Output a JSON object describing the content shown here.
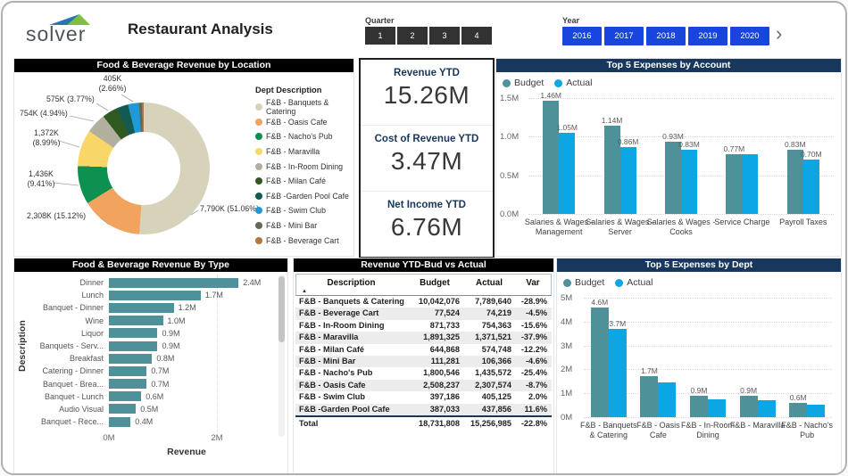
{
  "header": {
    "logo_text": "solver",
    "title": "Restaurant Analysis",
    "quarter_label": "Quarter",
    "quarters": [
      "1",
      "2",
      "3",
      "4"
    ],
    "year_label": "Year",
    "years": [
      "2016",
      "2017",
      "2018",
      "2019",
      "2020"
    ],
    "next_icon": "›"
  },
  "colors": {
    "budget_teal": "#4E9199",
    "actual_blue": "#0BA6E3",
    "header_navy": "#17375C",
    "header_black": "#000000",
    "year_button_blue": "#1745DD",
    "quarter_button_dark": "#323232",
    "kpi_label_navy": "#17375C",
    "logo_blue": "#2A73B5",
    "logo_green": "#7FBE41"
  },
  "kpi_cards": {
    "items": [
      {
        "label": "Revenue YTD",
        "value": "15.26M"
      },
      {
        "label": "Cost of Revenue YTD",
        "value": "3.47M"
      },
      {
        "label": "Net Income YTD",
        "value": "6.76M"
      }
    ]
  },
  "chart_data": [
    {
      "id": "revenue_by_location",
      "type": "pie",
      "title": "Food & Beverage Revenue by Location",
      "legend_title": "Dept Description",
      "legend_position": "right",
      "slices": [
        {
          "label": "F&B - Banquets & Catering",
          "value_k": 7790,
          "pct": 51.06,
          "color": "#D7D3BA",
          "callout": [
            "7,790K (51.06%)"
          ]
        },
        {
          "label": "F&B - Oasis Cafe",
          "value_k": 2308,
          "pct": 15.12,
          "color": "#F2A35E",
          "callout": [
            "2,308K (15.12%)"
          ]
        },
        {
          "label": "F&B - Nacho's Pub",
          "value_k": 1436,
          "pct": 9.41,
          "color": "#0E9150",
          "callout": [
            "1,436K",
            "(9.41%)"
          ]
        },
        {
          "label": "F&B - Maravilla",
          "value_k": 1372,
          "pct": 8.99,
          "color": "#F8D668",
          "callout": [
            "1,372K",
            "(8.99%)"
          ]
        },
        {
          "label": "F&B - In-Room Dining",
          "value_k": 754,
          "pct": 4.94,
          "color": "#B2AF9E",
          "callout": [
            "754K (4.94%)"
          ]
        },
        {
          "label": "F&B - Milan Café",
          "value_k": 575,
          "pct": 3.77,
          "color": "#30591F",
          "callout": [
            "575K (3.77%)"
          ]
        },
        {
          "label": "F&B -Garden Pool Cafe",
          "value_k": 438,
          "pct": 2.87,
          "color": "#155A50",
          "callout": null
        },
        {
          "label": "F&B - Swim Club",
          "value_k": 405,
          "pct": 2.66,
          "color": "#1F9AD7",
          "callout": [
            "405K",
            "(2.66%)"
          ]
        },
        {
          "label": "F&B - Mini Bar",
          "value_k": 106,
          "pct": 0.7,
          "color": "#6A6750",
          "callout": null
        },
        {
          "label": "F&B - Beverage Cart",
          "value_k": 74,
          "pct": 0.48,
          "color": "#B0763F",
          "callout": null
        }
      ]
    },
    {
      "id": "top5_expenses_by_account",
      "type": "bar",
      "title": "Top 5 Expenses by Account",
      "legend": [
        "Budget",
        "Actual"
      ],
      "ymax": 1.5,
      "yticks": [
        {
          "v": 1.5,
          "label": "1.5M"
        },
        {
          "v": 1.0,
          "label": "1.0M"
        },
        {
          "v": 0.5,
          "label": "0.5M"
        },
        {
          "v": 0.0,
          "label": "0.0M"
        }
      ],
      "categories": [
        "Salaries & Wages - Management",
        "Salaries & Wages - Server",
        "Salaries & Wages - Cooks",
        "Service Charge",
        "Payroll Taxes"
      ],
      "series": [
        {
          "name": "Budget",
          "values": [
            1.46,
            1.14,
            0.93,
            0.77,
            0.83
          ],
          "labels": [
            "1.46M",
            "1.14M",
            "0.93M",
            "0.77M",
            "0.83M"
          ]
        },
        {
          "name": "Actual",
          "values": [
            1.05,
            0.86,
            0.83,
            0.77,
            0.7
          ],
          "labels": [
            "1.05M",
            "0.86M",
            "0.83M",
            "",
            "0.70M"
          ]
        }
      ]
    },
    {
      "id": "revenue_by_type",
      "type": "bar-horizontal",
      "title": "Food & Beverage Revenue By Type",
      "xlabel": "Revenue",
      "ylabel": "Description",
      "xmax": 2.9,
      "xticks": [
        {
          "v": 0,
          "label": "0M"
        },
        {
          "v": 2,
          "label": "2M"
        }
      ],
      "categories": [
        "Dinner",
        "Lunch",
        "Banquet - Dinner",
        "Wine",
        "Liquor",
        "Banquets - Serv...",
        "Breakfast",
        "Catering - Dinner",
        "Banquet - Brea...",
        "Banquet - Lunch",
        "Audio Visual",
        "Banquet - Rece..."
      ],
      "values": [
        2.4,
        1.7,
        1.2,
        1.0,
        0.9,
        0.9,
        0.8,
        0.7,
        0.7,
        0.6,
        0.5,
        0.4
      ],
      "labels": [
        "2.4M",
        "1.7M",
        "1.2M",
        "1.0M",
        "0.9M",
        "0.9M",
        "0.8M",
        "0.7M",
        "0.7M",
        "0.6M",
        "0.5M",
        "0.4M"
      ]
    },
    {
      "id": "revenue_ytd_bud_vs_actual",
      "type": "table",
      "title": "Revenue YTD-Bud vs Actual",
      "columns": [
        "Description",
        "Budget",
        "Actual",
        "Var"
      ],
      "sort_icon": "▲",
      "rows": [
        [
          "F&B - Banquets & Catering",
          "10,042,076",
          "7,789,640",
          "-28.9%"
        ],
        [
          "F&B - Beverage Cart",
          "77,524",
          "74,219",
          "-4.5%"
        ],
        [
          "F&B - In-Room Dining",
          "871,733",
          "754,363",
          "-15.6%"
        ],
        [
          "F&B - Maravilla",
          "1,891,325",
          "1,371,521",
          "-37.9%"
        ],
        [
          "F&B - Milan Café",
          "644,868",
          "574,748",
          "-12.2%"
        ],
        [
          "F&B - Mini Bar",
          "111,281",
          "106,366",
          "-4.6%"
        ],
        [
          "F&B - Nacho's Pub",
          "1,800,546",
          "1,435,572",
          "-25.4%"
        ],
        [
          "F&B - Oasis Cafe",
          "2,508,237",
          "2,307,574",
          "-8.7%"
        ],
        [
          "F&B - Swim Club",
          "397,186",
          "405,125",
          "2.0%"
        ],
        [
          "F&B -Garden Pool Cafe",
          "387,033",
          "437,856",
          "11.6%"
        ]
      ],
      "total": [
        "Total",
        "18,731,808",
        "15,256,985",
        "-22.8%"
      ]
    },
    {
      "id": "top5_expenses_by_dept",
      "type": "bar",
      "title": "Top 5 Expenses by Dept",
      "legend": [
        "Budget",
        "Actual"
      ],
      "ymax": 5,
      "yticks": [
        {
          "v": 5,
          "label": "5M"
        },
        {
          "v": 4,
          "label": "4M"
        },
        {
          "v": 3,
          "label": "3M"
        },
        {
          "v": 2,
          "label": "2M"
        },
        {
          "v": 1,
          "label": "1M"
        },
        {
          "v": 0,
          "label": "0M"
        }
      ],
      "categories": [
        "F&B - Banquets & Catering",
        "F&B - Oasis Cafe",
        "F&B - In-Room Dining",
        "F&B - Maravilla",
        "F&B - Nacho's Pub"
      ],
      "series": [
        {
          "name": "Budget",
          "values": [
            4.6,
            1.7,
            0.9,
            0.9,
            0.6
          ],
          "labels": [
            "4.6M",
            "1.7M",
            "0.9M",
            "0.9M",
            "0.6M"
          ]
        },
        {
          "name": "Actual",
          "values": [
            3.7,
            1.45,
            0.73,
            0.72,
            0.52
          ],
          "labels": [
            "3.7M",
            "",
            "",
            "",
            ""
          ]
        }
      ]
    }
  ]
}
